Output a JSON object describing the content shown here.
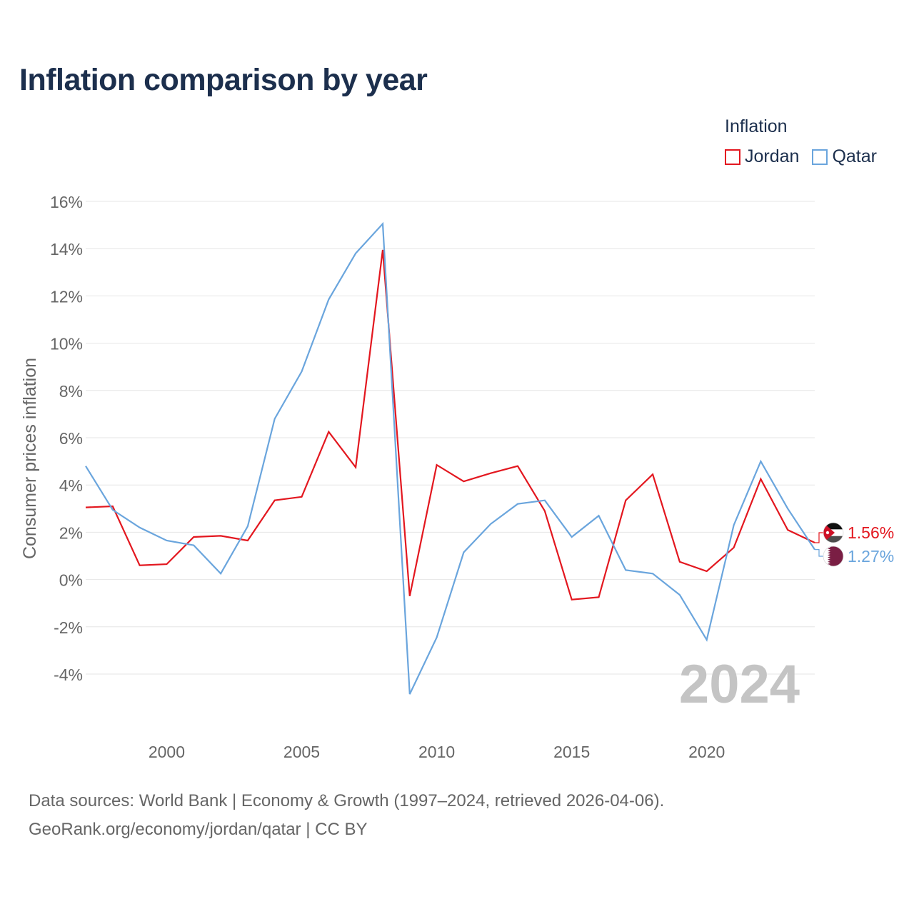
{
  "title": "Inflation comparison by year",
  "legend": {
    "title": "Inflation"
  },
  "watermark_year": "2024",
  "footer": {
    "line1": "Data sources: World Bank | Economy & Growth (1997–2024, retrieved 2026-04-06).",
    "line2": "GeoRank.org/economy/jordan/qatar | CC BY"
  },
  "colors": {
    "grid": "#e6e6e6",
    "axis_text": "#666666",
    "watermark": "#c4c4c4"
  },
  "chart_data": {
    "type": "line",
    "title": "Inflation comparison by year",
    "xlabel": "",
    "ylabel": "Consumer prices inflation",
    "xlim": [
      1997,
      2024
    ],
    "ylim": [
      -6,
      16
    ],
    "x_ticks": [
      2000,
      2005,
      2010,
      2015,
      2020
    ],
    "y_ticks": [
      16,
      14,
      12,
      10,
      8,
      6,
      4,
      2,
      0,
      -2,
      -4
    ],
    "y_tick_labels": [
      "16%",
      "14%",
      "12%",
      "10%",
      "8%",
      "6%",
      "4%",
      "2%",
      "0%",
      "-2%",
      "-4%"
    ],
    "x": [
      1997,
      1998,
      1999,
      2000,
      2001,
      2002,
      2003,
      2004,
      2005,
      2006,
      2007,
      2008,
      2009,
      2010,
      2011,
      2012,
      2013,
      2014,
      2015,
      2016,
      2017,
      2018,
      2019,
      2020,
      2021,
      2022,
      2023,
      2024
    ],
    "series": [
      {
        "name": "Jordan",
        "color": "#e3171f",
        "end_label": "1.56%",
        "flag": "jordan-flag-icon",
        "values": [
          3.05,
          3.1,
          0.6,
          0.65,
          1.8,
          1.85,
          1.65,
          3.35,
          3.5,
          6.25,
          4.75,
          13.95,
          -0.7,
          4.85,
          4.15,
          4.5,
          4.8,
          2.9,
          -0.85,
          -0.75,
          3.35,
          4.45,
          0.75,
          0.35,
          1.35,
          4.25,
          2.1,
          1.56
        ]
      },
      {
        "name": "Qatar",
        "color": "#6aa5dd",
        "end_label": "1.27%",
        "flag": "qatar-flag-icon",
        "values": [
          4.8,
          2.95,
          2.2,
          1.65,
          1.45,
          0.25,
          2.25,
          6.8,
          8.8,
          11.85,
          13.8,
          15.05,
          -4.85,
          -2.45,
          1.15,
          2.35,
          3.2,
          3.35,
          1.8,
          2.7,
          0.4,
          0.25,
          -0.65,
          -2.55,
          2.3,
          5.0,
          3.0,
          1.27
        ]
      }
    ]
  }
}
